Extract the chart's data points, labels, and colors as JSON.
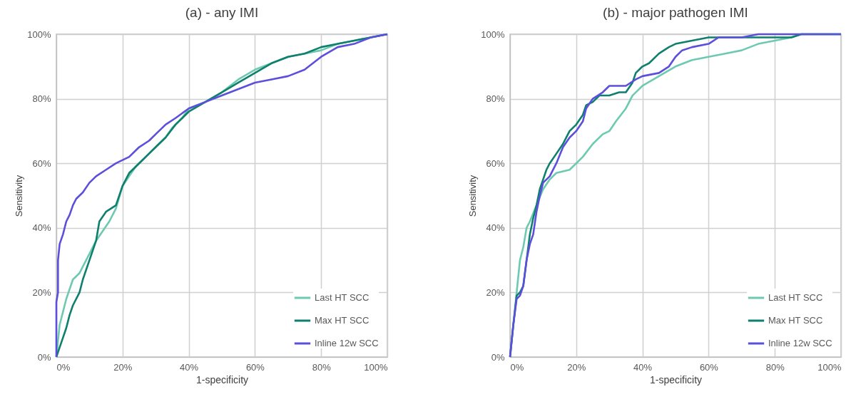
{
  "chart_data": [
    {
      "type": "line",
      "title": "(a) - any IMI",
      "xlabel": "1-specificity",
      "ylabel": "Sensitivity",
      "xlim": [
        0,
        100
      ],
      "ylim": [
        0,
        100
      ],
      "xticks": [
        {
          "value": 0,
          "label": "0%"
        },
        {
          "value": 20,
          "label": "20%"
        },
        {
          "value": 40,
          "label": "40%"
        },
        {
          "value": 60,
          "label": "60%"
        },
        {
          "value": 80,
          "label": "80%"
        },
        {
          "value": 100,
          "label": "100%"
        }
      ],
      "yticks": [
        {
          "value": 0,
          "label": "0%"
        },
        {
          "value": 20,
          "label": "20%"
        },
        {
          "value": 40,
          "label": "40%"
        },
        {
          "value": 60,
          "label": "60%"
        },
        {
          "value": 80,
          "label": "80%"
        },
        {
          "value": 100,
          "label": "100%"
        }
      ],
      "grid": true,
      "legend": "bottom right",
      "series": [
        {
          "name": "Last HT SCC",
          "color": "#6dcab0",
          "x": [
            0,
            0.5,
            1,
            2,
            3,
            4,
            5,
            7,
            8,
            10,
            12,
            14,
            16,
            18,
            20,
            22,
            24,
            27,
            30,
            33,
            35,
            38,
            40,
            45,
            50,
            55,
            60,
            65,
            70,
            75,
            80,
            85,
            90,
            95,
            100
          ],
          "values": [
            0,
            5,
            10,
            14,
            18,
            21,
            24,
            26,
            28,
            32,
            36,
            39,
            42,
            46,
            53,
            56,
            59,
            62,
            65,
            68,
            71,
            74,
            77,
            79,
            82,
            86,
            89,
            91,
            93,
            94,
            95,
            97,
            98,
            99,
            100
          ]
        },
        {
          "name": "Max HT SCC",
          "color": "#0f7f6e",
          "x": [
            0,
            1,
            2,
            3,
            4,
            5,
            7,
            8,
            10,
            12,
            13,
            15,
            18,
            20,
            22,
            25,
            28,
            30,
            33,
            36,
            40,
            45,
            50,
            55,
            60,
            65,
            70,
            75,
            80,
            85,
            90,
            95,
            100
          ],
          "values": [
            0,
            3,
            6,
            9,
            13,
            16,
            20,
            24,
            30,
            36,
            42,
            45,
            47,
            53,
            57,
            60,
            63,
            65,
            68,
            72,
            76,
            79,
            82,
            85,
            88,
            91,
            93,
            94,
            96,
            97,
            98,
            99,
            100
          ]
        },
        {
          "name": "Inline 12w SCC",
          "color": "#5b4fdc",
          "x": [
            0,
            0,
            0.5,
            0.5,
            1,
            2,
            3,
            4,
            5,
            6,
            8,
            10,
            12,
            15,
            18,
            20,
            22,
            25,
            28,
            30,
            33,
            36,
            40,
            45,
            50,
            55,
            60,
            65,
            70,
            75,
            80,
            85,
            90,
            95,
            100
          ],
          "values": [
            0,
            17,
            20,
            30,
            35,
            38,
            42,
            44,
            47,
            49,
            51,
            54,
            56,
            58,
            60,
            61,
            62,
            65,
            67,
            69,
            72,
            74,
            77,
            79,
            81,
            83,
            85,
            86,
            87,
            89,
            93,
            96,
            97,
            99,
            100
          ]
        }
      ]
    },
    {
      "type": "line",
      "title": "(b) - major pathogen IMI",
      "xlabel": "1-specificity",
      "ylabel": "Sensitivity",
      "xlim": [
        0,
        100
      ],
      "ylim": [
        0,
        100
      ],
      "xticks": [
        {
          "value": 0,
          "label": "0%"
        },
        {
          "value": 20,
          "label": "20%"
        },
        {
          "value": 40,
          "label": "40%"
        },
        {
          "value": 60,
          "label": "60%"
        },
        {
          "value": 80,
          "label": "80%"
        },
        {
          "value": 100,
          "label": "100%"
        }
      ],
      "yticks": [
        {
          "value": 0,
          "label": "0%"
        },
        {
          "value": 20,
          "label": "20%"
        },
        {
          "value": 40,
          "label": "40%"
        },
        {
          "value": 60,
          "label": "60%"
        },
        {
          "value": 80,
          "label": "80%"
        },
        {
          "value": 100,
          "label": "100%"
        }
      ],
      "grid": true,
      "legend": "bottom right",
      "series": [
        {
          "name": "Last HT SCC",
          "color": "#6dcab0",
          "x": [
            0,
            1,
            2,
            3,
            4,
            5,
            6,
            8,
            10,
            12,
            14,
            18,
            20,
            22,
            25,
            28,
            30,
            32,
            35,
            37,
            40,
            45,
            50,
            55,
            60,
            65,
            70,
            75,
            80,
            85,
            88,
            100
          ],
          "values": [
            0,
            10,
            20,
            30,
            34,
            40,
            42,
            47,
            52,
            55,
            57,
            58,
            60,
            62,
            66,
            69,
            70,
            73,
            77,
            81,
            84,
            87,
            90,
            92,
            93,
            94,
            95,
            97,
            98,
            99,
            100,
            100
          ]
        },
        {
          "name": "Max HT SCC",
          "color": "#0f7f6e",
          "x": [
            0,
            0.5,
            1,
            2,
            3,
            4,
            5,
            6,
            7,
            8,
            9,
            10,
            11,
            12,
            14,
            16,
            17,
            18,
            20,
            22,
            23,
            25,
            27,
            30,
            33,
            35,
            37,
            38,
            40,
            42,
            45,
            48,
            50,
            55,
            60,
            70,
            80,
            85,
            88,
            100
          ],
          "values": [
            0,
            5,
            10,
            19,
            20,
            22,
            30,
            38,
            43,
            47,
            52,
            55,
            58,
            60,
            63,
            66,
            68,
            70,
            72,
            75,
            78,
            79,
            81,
            81,
            82,
            82,
            85,
            88,
            90,
            91,
            94,
            96,
            97,
            98,
            99,
            99,
            99,
            99,
            100,
            100
          ]
        },
        {
          "name": "Inline 12w SCC",
          "color": "#5b4fdc",
          "x": [
            0,
            0.5,
            1,
            2,
            3,
            4,
            5,
            6,
            7,
            8,
            9,
            10,
            12,
            14,
            16,
            18,
            20,
            22,
            23,
            25,
            28,
            30,
            35,
            38,
            40,
            45,
            48,
            50,
            52,
            55,
            60,
            63,
            70,
            75,
            100
          ],
          "values": [
            0,
            5,
            10,
            18,
            19,
            22,
            30,
            35,
            38,
            45,
            50,
            54,
            56,
            60,
            65,
            68,
            70,
            73,
            77,
            80,
            82,
            84,
            84,
            86,
            87,
            88,
            90,
            93,
            95,
            96,
            97,
            99,
            99,
            100,
            100
          ]
        }
      ]
    }
  ]
}
